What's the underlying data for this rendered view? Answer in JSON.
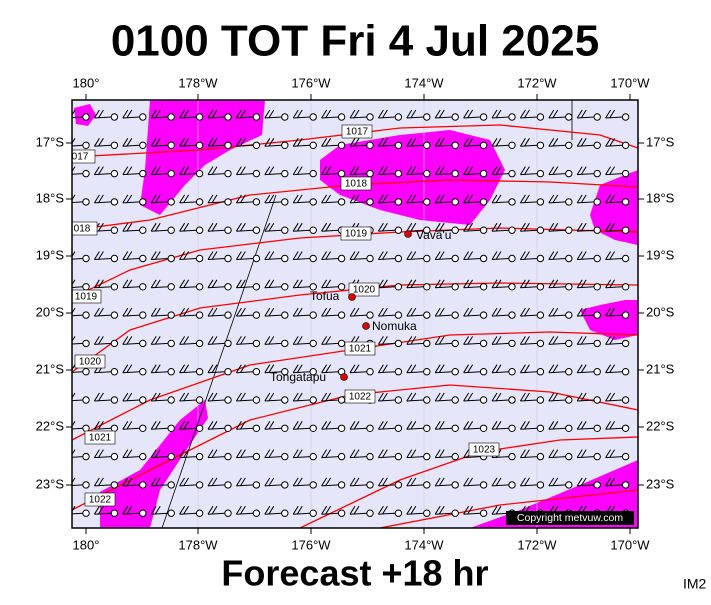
{
  "header": {
    "title": "0100 TOT Fri 4 Jul 2025"
  },
  "footer": {
    "forecast": "Forecast +18 hr",
    "code": "IM2"
  },
  "map": {
    "lon_labels": [
      "180°",
      "178°W",
      "176°W",
      "174°W",
      "172°W",
      "170°W"
    ],
    "lat_labels": [
      "17°S",
      "18°S",
      "19°S",
      "20°S",
      "21°S",
      "22°S",
      "23°S"
    ],
    "isobar_labels": [
      "1017",
      "017",
      "1018",
      "018",
      "1019",
      "1019",
      "1020",
      "1020",
      "1021",
      "1021",
      "1022",
      "1022",
      "1023"
    ],
    "places": [
      "Vava'u",
      "Tofua",
      "Nomuka",
      "Tongatapu"
    ],
    "copyright": "Copyright metvuw.com"
  }
}
